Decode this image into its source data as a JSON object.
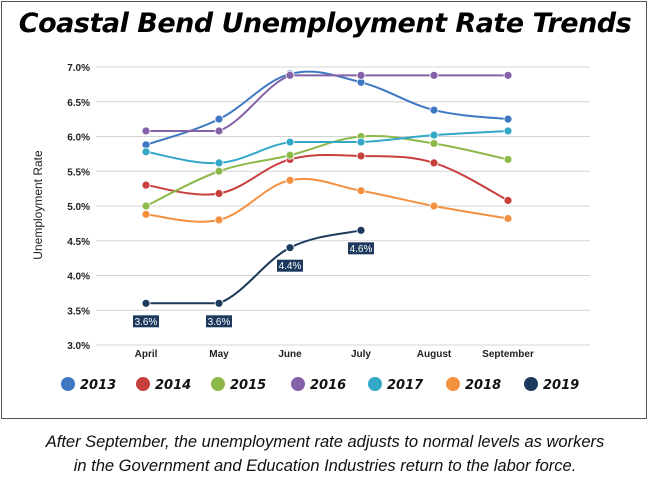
{
  "title": "Coastal Bend Unemployment Rate Trends",
  "caption": {
    "line1": "After September, the unemployment rate adjusts to normal levels as workers",
    "line2": "in the Government and Education Industries return to the labor force."
  },
  "chart_data": {
    "type": "line",
    "title": "Coastal Bend Unemployment Rate Trends",
    "xlabel": "",
    "ylabel": "Unemployment Rate",
    "categories": [
      "April",
      "May",
      "June",
      "July",
      "August",
      "September"
    ],
    "ylim": [
      3.0,
      7.0
    ],
    "yticks": [
      3.0,
      3.5,
      4.0,
      4.5,
      5.0,
      5.5,
      6.0,
      6.5,
      7.0
    ],
    "ytick_labels": [
      "3.0%",
      "3.5%",
      "4.0%",
      "4.5%",
      "5.0%",
      "5.5%",
      "6.0%",
      "6.5%",
      "7.0%"
    ],
    "grid": true,
    "legend_position": "bottom",
    "series": [
      {
        "name": "2013",
        "color": "#3f78c2",
        "values": [
          5.88,
          6.25,
          6.9,
          6.78,
          6.38,
          6.25
        ]
      },
      {
        "name": "2014",
        "color": "#c8403e",
        "values": [
          5.3,
          5.18,
          5.67,
          5.72,
          5.62,
          5.08
        ]
      },
      {
        "name": "2015",
        "color": "#8db84a",
        "values": [
          5.0,
          5.5,
          5.73,
          6.0,
          5.9,
          5.67
        ]
      },
      {
        "name": "2016",
        "color": "#8462a8",
        "values": [
          6.08,
          6.08,
          6.88,
          6.88,
          6.88,
          6.88
        ]
      },
      {
        "name": "2017",
        "color": "#33a7c6",
        "values": [
          5.78,
          5.62,
          5.92,
          5.92,
          6.02,
          6.08
        ]
      },
      {
        "name": "2018",
        "color": "#f39141",
        "values": [
          4.88,
          4.8,
          5.37,
          5.22,
          5.0,
          4.82
        ]
      },
      {
        "name": "2019",
        "color": "#1d3a5e",
        "values": [
          3.6,
          3.6,
          4.4,
          4.65,
          null,
          null
        ],
        "data_labels": [
          "3.6%",
          "3.6%",
          "4.4%",
          "4.6%",
          null,
          null
        ]
      }
    ]
  }
}
